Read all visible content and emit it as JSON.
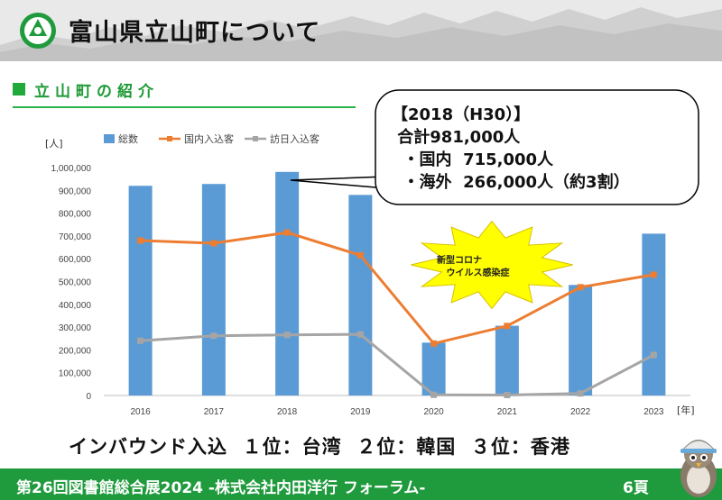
{
  "header": {
    "title": "富山県立山町について"
  },
  "section": {
    "label": "立山町の紹介"
  },
  "callout": {
    "text": "【2018（H30）】\n 合計981,000人\n  ・国内  715,000人\n  ・海外  266,000人（約3割）"
  },
  "burst": {
    "text": "新型コロナ\n   ウイルス感染症"
  },
  "inbound": {
    "text": "インバウンド入込  １位：台湾  ２位：韓国  ３位：香港"
  },
  "footer": {
    "text": "第26回図書館総合展2024 -株式会社内田洋行 フォーラム-",
    "page": "6頁"
  },
  "colors": {
    "accent": "#1f9a3c",
    "bar": "#5b9bd5",
    "domestic": "#ed7d31",
    "foreign": "#a5a5a5"
  },
  "chart_data": {
    "type": "bar",
    "categories": [
      "2016",
      "2017",
      "2018",
      "2019",
      "2020",
      "2021",
      "2022",
      "2023"
    ],
    "series": [
      {
        "name": "総数",
        "type": "bar",
        "color": "#5b9bd5",
        "values": [
          920000,
          928000,
          981000,
          880000,
          232000,
          306000,
          485000,
          710000
        ]
      },
      {
        "name": "国内入込客",
        "type": "line",
        "color": "#ed7d31",
        "values": [
          680000,
          668000,
          715000,
          615000,
          228000,
          305000,
          475000,
          530000
        ]
      },
      {
        "name": "訪日入込客",
        "type": "line",
        "color": "#a5a5a5",
        "values": [
          240000,
          262000,
          266000,
          268000,
          3000,
          2000,
          9000,
          178000
        ]
      }
    ],
    "yunit": "[人]",
    "xunit": "[年]",
    "ylim": [
      0,
      1000000
    ],
    "yticks": [
      "1,000,000",
      "900,000",
      "800,000",
      "700,000",
      "600,000",
      "500,000",
      "400,000",
      "300,000",
      "200,000",
      "100,000",
      "0"
    ],
    "legend": "top"
  }
}
